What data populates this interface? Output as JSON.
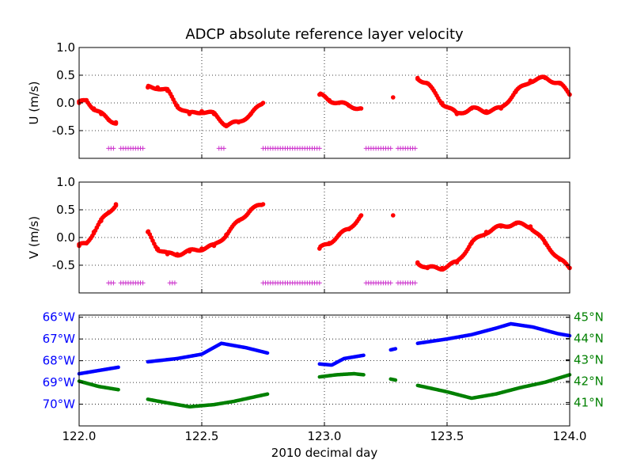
{
  "chart_data": {
    "type": "scatter",
    "title": "ADCP absolute reference layer velocity",
    "xlabel": "2010 decimal day",
    "xlim": [
      122.0,
      124.0
    ],
    "xticks": [
      "122.0",
      "122.5",
      "123.0",
      "123.5",
      "124.0"
    ],
    "grid": true,
    "colors": {
      "points": "#ff0000",
      "line": "#0000ff",
      "flags": "#cc33cc",
      "lon": "#0000ff",
      "lat": "#008000"
    },
    "panels": [
      {
        "id": "u",
        "ylabel": "U (m/s)",
        "ylim": [
          -1.0,
          1.0
        ],
        "yticks": [
          "1.0",
          "0.5",
          "0.0",
          "-0.5"
        ],
        "ytick_values": [
          1.0,
          0.5,
          0.0,
          -0.5
        ],
        "series": [
          {
            "kind": "points+line",
            "x": [
              122.0,
              122.03,
              122.06,
              122.09,
              122.12,
              122.15,
              122.28,
              122.32,
              122.36,
              122.4,
              122.45,
              122.5,
              122.55,
              122.6,
              122.65,
              122.7,
              122.75,
              122.98,
              123.02,
              123.06,
              123.1,
              123.15,
              123.28,
              123.38,
              123.42,
              123.48,
              123.54,
              123.6,
              123.66,
              123.72,
              123.78,
              123.84,
              123.9,
              123.96,
              124.0
            ],
            "y": [
              0.0,
              0.05,
              -0.1,
              -0.2,
              -0.3,
              -0.35,
              0.28,
              0.28,
              0.22,
              -0.05,
              -0.2,
              -0.15,
              -0.2,
              -0.4,
              -0.35,
              -0.2,
              0.0,
              0.15,
              0.05,
              0.0,
              -0.05,
              -0.1,
              0.1,
              0.45,
              0.35,
              0.0,
              -0.2,
              -0.1,
              -0.15,
              -0.1,
              0.2,
              0.4,
              0.45,
              0.35,
              0.15
            ]
          },
          {
            "kind": "flags",
            "value": -0.82,
            "ranges": [
              [
                122.12,
                122.14
              ],
              [
                122.17,
                122.26
              ],
              [
                122.57,
                122.59
              ],
              [
                122.75,
                122.98
              ],
              [
                123.17,
                123.27
              ],
              [
                123.3,
                123.37
              ]
            ]
          }
        ]
      },
      {
        "id": "v",
        "ylabel": "V (m/s)",
        "ylim": [
          -1.0,
          1.0
        ],
        "yticks": [
          "1.0",
          "0.5",
          "0.0",
          "-0.5"
        ],
        "ytick_values": [
          1.0,
          0.5,
          0.0,
          -0.5
        ],
        "series": [
          {
            "kind": "points+line",
            "x": [
              122.0,
              122.03,
              122.06,
              122.09,
              122.12,
              122.15,
              122.28,
              122.32,
              122.36,
              122.4,
              122.45,
              122.5,
              122.55,
              122.6,
              122.65,
              122.7,
              122.75,
              122.98,
              123.02,
              123.06,
              123.1,
              123.15,
              123.28,
              123.38,
              123.42,
              123.48,
              123.54,
              123.6,
              123.66,
              123.72,
              123.78,
              123.84,
              123.9,
              123.96,
              124.0
            ],
            "y": [
              -0.15,
              -0.1,
              0.1,
              0.3,
              0.45,
              0.6,
              0.1,
              -0.2,
              -0.3,
              -0.3,
              -0.25,
              -0.2,
              -0.15,
              0.05,
              0.3,
              0.5,
              0.6,
              -0.2,
              -0.1,
              0.05,
              0.15,
              0.4,
              0.4,
              -0.45,
              -0.55,
              -0.55,
              -0.45,
              -0.1,
              0.1,
              0.2,
              0.25,
              0.2,
              -0.1,
              -0.4,
              -0.55
            ]
          },
          {
            "kind": "flags",
            "value": -0.82,
            "ranges": [
              [
                122.12,
                122.14
              ],
              [
                122.17,
                122.26
              ],
              [
                122.37,
                122.39
              ],
              [
                122.75,
                122.98
              ],
              [
                123.17,
                123.27
              ],
              [
                123.3,
                123.37
              ]
            ]
          }
        ]
      },
      {
        "id": "pos",
        "ylim": [
          -71.0,
          -65.9
        ],
        "yticks": [
          "66°W",
          "67°W",
          "68°W",
          "69°W",
          "70°W"
        ],
        "ytick_values": [
          -66,
          -67,
          -68,
          -69,
          -70
        ],
        "y2lim": [
          39.9,
          45.1
        ],
        "y2ticks": [
          "45°N",
          "44°N",
          "43°N",
          "42°N",
          "41°N"
        ],
        "y2tick_values": [
          45,
          44,
          43,
          42,
          41
        ],
        "series": [
          {
            "name": "",
            "axis": "left",
            "segments": [
              {
                "x": [
                  122.0,
                  122.08,
                  122.16
                ],
                "y": [
                  -68.6,
                  -68.45,
                  -68.3
                ]
              },
              {
                "x": [
                  122.28,
                  122.4,
                  122.5,
                  122.58,
                  122.68,
                  122.77
                ],
                "y": [
                  -68.05,
                  -67.9,
                  -67.7,
                  -67.2,
                  -67.4,
                  -67.65
                ]
              },
              {
                "x": [
                  122.98,
                  123.03,
                  123.08,
                  123.16
                ],
                "y": [
                  -68.15,
                  -68.2,
                  -67.9,
                  -67.75
                ]
              },
              {
                "x": [
                  123.27,
                  123.29
                ],
                "y": [
                  -67.5,
                  -67.45
                ]
              },
              {
                "x": [
                  123.38,
                  123.5,
                  123.6,
                  123.7,
                  123.76,
                  123.85,
                  123.95,
                  124.0
                ],
                "y": [
                  -67.2,
                  -67.0,
                  -66.8,
                  -66.5,
                  -66.3,
                  -66.45,
                  -66.75,
                  -66.85
                ]
              }
            ]
          },
          {
            "name": "",
            "axis": "right",
            "segments": [
              {
                "x": [
                  122.0,
                  122.08,
                  122.16
                ],
                "y": [
                  42.0,
                  41.75,
                  41.6
                ]
              },
              {
                "x": [
                  122.28,
                  122.35,
                  122.45,
                  122.55,
                  122.63,
                  122.77
                ],
                "y": [
                  41.15,
                  41.0,
                  40.8,
                  40.9,
                  41.05,
                  41.4
                ]
              },
              {
                "x": [
                  122.98,
                  123.05,
                  123.12,
                  123.16
                ],
                "y": [
                  42.2,
                  42.3,
                  42.35,
                  42.3
                ]
              },
              {
                "x": [
                  123.27,
                  123.29
                ],
                "y": [
                  42.1,
                  42.05
                ]
              },
              {
                "x": [
                  123.38,
                  123.5,
                  123.6,
                  123.7,
                  123.8,
                  123.9,
                  124.0
                ],
                "y": [
                  41.8,
                  41.5,
                  41.2,
                  41.4,
                  41.7,
                  41.95,
                  42.3
                ]
              }
            ]
          }
        ]
      }
    ]
  }
}
